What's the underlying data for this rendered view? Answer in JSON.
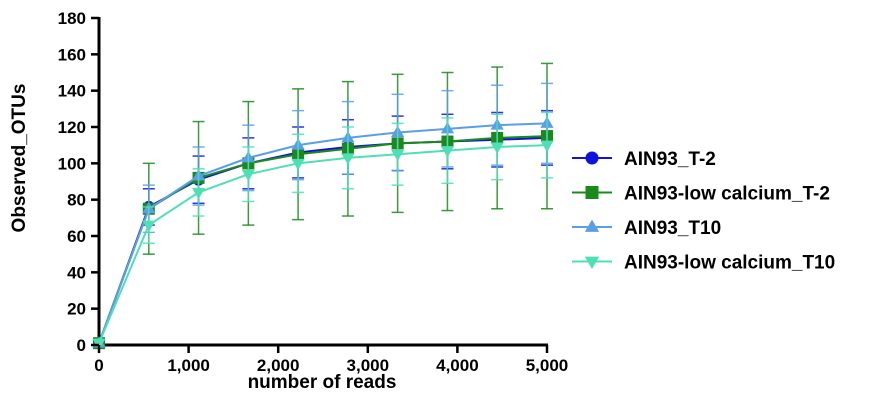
{
  "chart_data": {
    "type": "line",
    "xlabel": "number of reads",
    "ylabel": "Observed_OTUs",
    "xlim": [
      0,
      5000
    ],
    "ylim": [
      0,
      180
    ],
    "x_ticks": [
      0,
      1000,
      2000,
      3000,
      4000,
      5000
    ],
    "x_tick_labels": [
      "0",
      "1,000",
      "2,000",
      "3,000",
      "4,000",
      "5,000"
    ],
    "y_ticks": [
      0,
      20,
      40,
      60,
      80,
      100,
      120,
      140,
      160,
      180
    ],
    "y_tick_labels": [
      "0",
      "20",
      "40",
      "60",
      "80",
      "100",
      "120",
      "140",
      "160",
      "180"
    ],
    "grid": false,
    "legend_position": "right",
    "x": [
      0,
      556,
      1111,
      1667,
      2222,
      2778,
      3333,
      3889,
      4444,
      5000
    ],
    "series": [
      {
        "name": "AIN93_T-2",
        "color": "#1010e0",
        "marker": "circle",
        "values": [
          1,
          76,
          91,
          100,
          106,
          109,
          111,
          112,
          113,
          114
        ],
        "errors": [
          0,
          10,
          13,
          14,
          14,
          15,
          15,
          15,
          15,
          15
        ]
      },
      {
        "name": "AIN93-low calcium_T-2",
        "color": "#1a8a1a",
        "marker": "square",
        "values": [
          1,
          75,
          92,
          100,
          105,
          108,
          111,
          112,
          114,
          115
        ],
        "errors": [
          0,
          25,
          31,
          34,
          36,
          37,
          38,
          38,
          39,
          40
        ]
      },
      {
        "name": "AIN93_T10",
        "color": "#5b9ee8",
        "marker": "triangle-up",
        "values": [
          1,
          75,
          93,
          103,
          110,
          114,
          117,
          119,
          121,
          122
        ],
        "errors": [
          0,
          13,
          16,
          18,
          19,
          20,
          21,
          21,
          22,
          22
        ]
      },
      {
        "name": "AIN93-low calcium_T10",
        "color": "#4ee0b4",
        "marker": "triangle-down",
        "values": [
          1,
          66,
          84,
          94,
          100,
          103,
          105,
          107,
          109,
          110
        ],
        "errors": [
          0,
          10,
          13,
          15,
          16,
          17,
          17,
          18,
          18,
          18
        ]
      }
    ]
  }
}
